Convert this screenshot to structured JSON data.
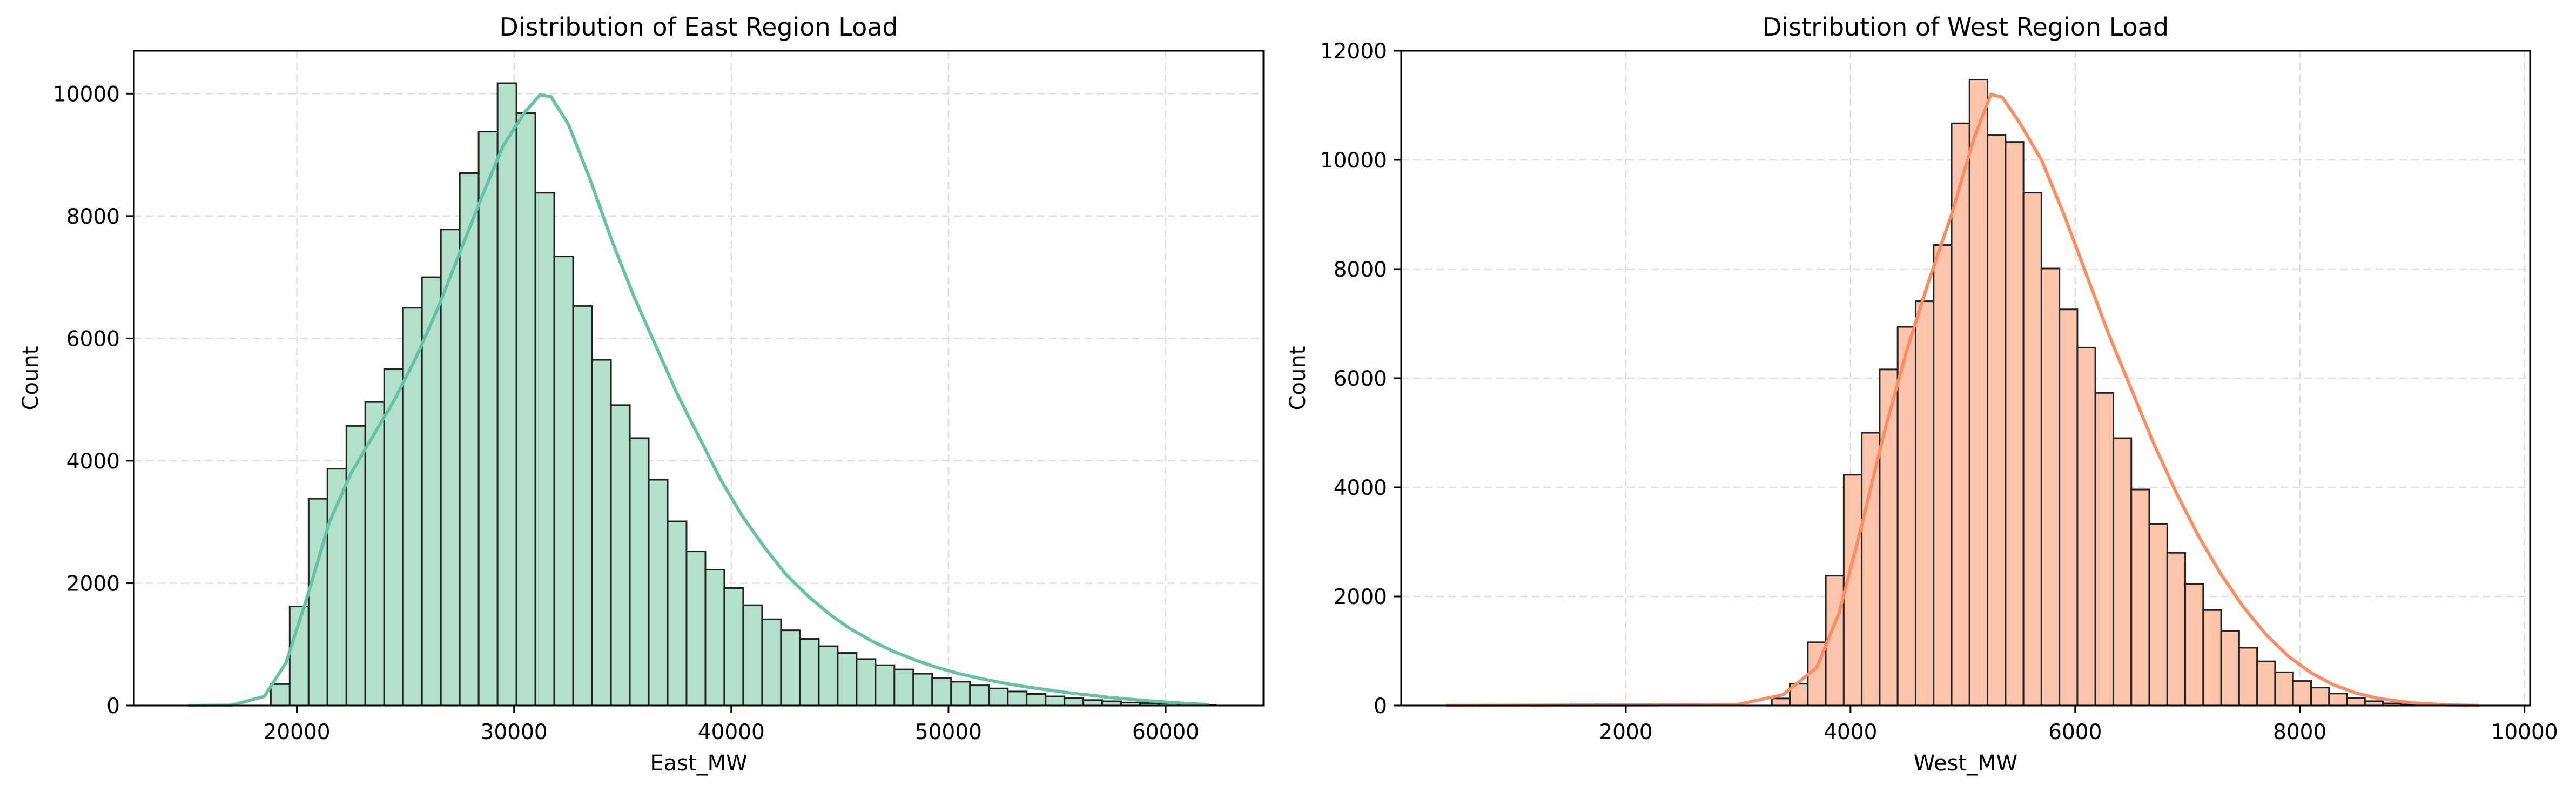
{
  "chart_data": [
    {
      "type": "bar",
      "title": "Distribution of East Region Load",
      "xlabel": "East_MW",
      "ylabel": "Count",
      "xlim": [
        12500,
        64500
      ],
      "ylim": [
        0,
        10700
      ],
      "xticks": [
        20000,
        30000,
        40000,
        50000,
        60000
      ],
      "yticks": [
        0,
        2000,
        4000,
        6000,
        8000,
        10000
      ],
      "grid": true,
      "bar_color": "#b2e0cd",
      "line_color": "#66c2a5",
      "edge_color": "#222222",
      "bin_edges": [
        18800,
        19670,
        20540,
        21410,
        22280,
        23150,
        24020,
        24890,
        25760,
        26630,
        27500,
        28370,
        29240,
        30110,
        30980,
        31850,
        32720,
        33590,
        34460,
        35330,
        36200,
        37070,
        37940,
        38810,
        39680,
        40550,
        41420,
        42290,
        43160,
        44030,
        44900,
        45770,
        46640,
        47510,
        48380,
        49250,
        50120,
        50990,
        51860,
        52730,
        53600,
        54470,
        55340,
        56210,
        57080,
        57950,
        58820,
        59690,
        60560,
        61430,
        62300
      ],
      "counts": [
        350,
        1620,
        3380,
        3870,
        4570,
        4960,
        5500,
        6500,
        7000,
        7780,
        8700,
        9380,
        10170,
        9680,
        8380,
        7340,
        6530,
        5650,
        4910,
        4370,
        3690,
        3010,
        2520,
        2220,
        1920,
        1640,
        1410,
        1230,
        1090,
        970,
        860,
        760,
        660,
        590,
        520,
        450,
        390,
        330,
        280,
        230,
        190,
        150,
        120,
        90,
        70,
        50,
        40,
        30,
        20,
        10
      ],
      "kde": [
        [
          15000,
          0
        ],
        [
          17000,
          5
        ],
        [
          18500,
          150
        ],
        [
          19500,
          700
        ],
        [
          20500,
          1800
        ],
        [
          21500,
          3000
        ],
        [
          22500,
          3800
        ],
        [
          23500,
          4400
        ],
        [
          24500,
          5000
        ],
        [
          25500,
          5700
        ],
        [
          26500,
          6500
        ],
        [
          27500,
          7400
        ],
        [
          28500,
          8300
        ],
        [
          29500,
          9150
        ],
        [
          30500,
          9700
        ],
        [
          31200,
          9980
        ],
        [
          31700,
          9950
        ],
        [
          32500,
          9500
        ],
        [
          33500,
          8600
        ],
        [
          34500,
          7600
        ],
        [
          35500,
          6700
        ],
        [
          36500,
          5900
        ],
        [
          37500,
          5100
        ],
        [
          38500,
          4400
        ],
        [
          39500,
          3700
        ],
        [
          40500,
          3100
        ],
        [
          41500,
          2600
        ],
        [
          42500,
          2150
        ],
        [
          43500,
          1800
        ],
        [
          44500,
          1500
        ],
        [
          45500,
          1250
        ],
        [
          46500,
          1050
        ],
        [
          47500,
          880
        ],
        [
          48500,
          740
        ],
        [
          49500,
          620
        ],
        [
          50500,
          520
        ],
        [
          51500,
          440
        ],
        [
          52500,
          370
        ],
        [
          53500,
          310
        ],
        [
          54500,
          260
        ],
        [
          55500,
          210
        ],
        [
          56500,
          170
        ],
        [
          57500,
          130
        ],
        [
          58500,
          100
        ],
        [
          59500,
          70
        ],
        [
          60500,
          45
        ],
        [
          61500,
          25
        ],
        [
          62000,
          15
        ]
      ]
    },
    {
      "type": "bar",
      "title": "Distribution of West Region Load",
      "xlabel": "West_MW",
      "ylabel": "Count",
      "xlim": [
        0,
        10050
      ],
      "ylim": [
        0,
        12000
      ],
      "xticks": [
        2000,
        4000,
        6000,
        8000,
        10000
      ],
      "yticks": [
        0,
        2000,
        4000,
        6000,
        8000,
        10000,
        12000
      ],
      "grid": true,
      "bar_color": "#fcc4aa",
      "line_color": "#fc8d62",
      "edge_color": "#222222",
      "bin_edges": [
        3300,
        3460,
        3620,
        3780,
        3940,
        4100,
        4260,
        4420,
        4580,
        4740,
        4900,
        5060,
        5220,
        5380,
        5540,
        5700,
        5860,
        6020,
        6180,
        6340,
        6500,
        6660,
        6820,
        6980,
        7140,
        7300,
        7460,
        7620,
        7780,
        7940,
        8100,
        8260,
        8420,
        8580,
        8740,
        8900,
        9060
      ],
      "counts": [
        130,
        400,
        1160,
        2380,
        4230,
        5000,
        6160,
        6940,
        7410,
        8440,
        10670,
        11470,
        10460,
        10330,
        9400,
        8010,
        7260,
        6560,
        5730,
        4900,
        3960,
        3330,
        2800,
        2230,
        1750,
        1370,
        1060,
        810,
        610,
        450,
        330,
        220,
        140,
        80,
        40,
        20
      ],
      "kde": [
        [
          400,
          0
        ],
        [
          3000,
          20
        ],
        [
          3400,
          200
        ],
        [
          3700,
          700
        ],
        [
          3900,
          1700
        ],
        [
          4100,
          3300
        ],
        [
          4300,
          5000
        ],
        [
          4500,
          6500
        ],
        [
          4700,
          7800
        ],
        [
          4900,
          9000
        ],
        [
          5100,
          10400
        ],
        [
          5250,
          11200
        ],
        [
          5350,
          11150
        ],
        [
          5500,
          10700
        ],
        [
          5700,
          10000
        ],
        [
          5900,
          9000
        ],
        [
          6100,
          7900
        ],
        [
          6300,
          6800
        ],
        [
          6500,
          5800
        ],
        [
          6700,
          4800
        ],
        [
          6900,
          3900
        ],
        [
          7100,
          3100
        ],
        [
          7300,
          2400
        ],
        [
          7500,
          1800
        ],
        [
          7700,
          1300
        ],
        [
          7900,
          900
        ],
        [
          8100,
          600
        ],
        [
          8300,
          380
        ],
        [
          8500,
          230
        ],
        [
          8700,
          130
        ],
        [
          9000,
          50
        ],
        [
          9300,
          15
        ],
        [
          9600,
          0
        ]
      ]
    }
  ]
}
